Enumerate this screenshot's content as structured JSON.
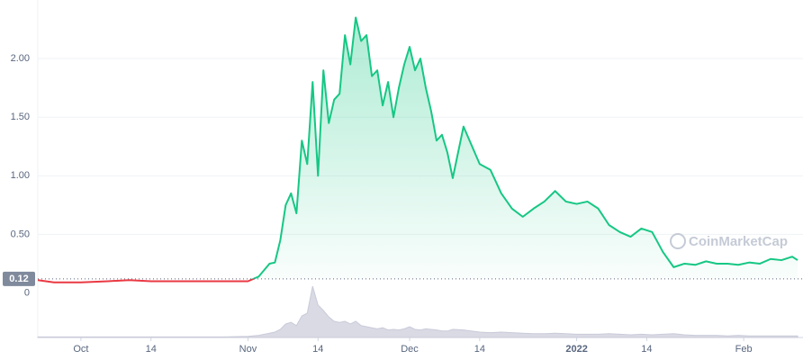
{
  "chart_data": {
    "type": "line",
    "watermark": "CoinMarketCap",
    "x": [
      "2021-09-23",
      "2021-09-26",
      "2021-10-01",
      "2021-10-06",
      "2021-10-10",
      "2021-10-14",
      "2021-10-20",
      "2021-10-27",
      "2021-11-01",
      "2021-11-03",
      "2021-11-05",
      "2021-11-06",
      "2021-11-07",
      "2021-11-08",
      "2021-11-09",
      "2021-11-10",
      "2021-11-11",
      "2021-11-12",
      "2021-11-13",
      "2021-11-14",
      "2021-11-15",
      "2021-11-16",
      "2021-11-17",
      "2021-11-18",
      "2021-11-19",
      "2021-11-20",
      "2021-11-21",
      "2021-11-22",
      "2021-11-23",
      "2021-11-24",
      "2021-11-25",
      "2021-11-26",
      "2021-11-27",
      "2021-11-28",
      "2021-11-29",
      "2021-11-30",
      "2021-12-01",
      "2021-12-02",
      "2021-12-03",
      "2021-12-04",
      "2021-12-05",
      "2021-12-06",
      "2021-12-07",
      "2021-12-08",
      "2021-12-09",
      "2021-12-11",
      "2021-12-14",
      "2021-12-16",
      "2021-12-18",
      "2021-12-20",
      "2021-12-22",
      "2021-12-24",
      "2021-12-26",
      "2021-12-28",
      "2021-12-30",
      "2022-01-01",
      "2022-01-03",
      "2022-01-05",
      "2022-01-07",
      "2022-01-09",
      "2022-01-11",
      "2022-01-13",
      "2022-01-15",
      "2022-01-17",
      "2022-01-19",
      "2022-01-21",
      "2022-01-23",
      "2022-01-25",
      "2022-01-27",
      "2022-01-29",
      "2022-01-31",
      "2022-02-02",
      "2022-02-04",
      "2022-02-06",
      "2022-02-08",
      "2022-02-10",
      "2022-02-11"
    ],
    "series": [
      {
        "name": "Price",
        "color": "#16c784",
        "color_below": "#ea3943",
        "values": [
          0.11,
          0.09,
          0.09,
          0.1,
          0.11,
          0.1,
          0.1,
          0.1,
          0.1,
          0.14,
          0.25,
          0.26,
          0.45,
          0.75,
          0.85,
          0.68,
          1.3,
          1.1,
          1.8,
          1.0,
          1.9,
          1.45,
          1.65,
          1.7,
          2.2,
          1.95,
          2.35,
          2.15,
          2.2,
          1.85,
          1.9,
          1.6,
          1.8,
          1.5,
          1.75,
          1.95,
          2.1,
          1.9,
          2.0,
          1.75,
          1.55,
          1.3,
          1.35,
          1.2,
          0.98,
          1.42,
          1.1,
          1.05,
          0.85,
          0.72,
          0.65,
          0.72,
          0.78,
          0.87,
          0.78,
          0.76,
          0.78,
          0.72,
          0.58,
          0.52,
          0.48,
          0.55,
          0.52,
          0.35,
          0.22,
          0.25,
          0.24,
          0.27,
          0.25,
          0.25,
          0.24,
          0.26,
          0.25,
          0.29,
          0.28,
          0.31,
          0.28
        ]
      },
      {
        "name": "Volume",
        "color": "#c9cbd9",
        "axis": "y2",
        "values": [
          1,
          1,
          1,
          1,
          1,
          1,
          1,
          1,
          2,
          4,
          8,
          10,
          15,
          25,
          28,
          22,
          40,
          45,
          95,
          60,
          50,
          38,
          30,
          28,
          30,
          25,
          30,
          22,
          20,
          18,
          16,
          18,
          14,
          15,
          14,
          16,
          20,
          15,
          14,
          16,
          15,
          14,
          12,
          12,
          15,
          14,
          10,
          9,
          10,
          9,
          8,
          7,
          7,
          8,
          7,
          6,
          6,
          6,
          7,
          6,
          5,
          6,
          5,
          6,
          7,
          5,
          4,
          4,
          4,
          3,
          4,
          3,
          3,
          3,
          3,
          3,
          3
        ]
      }
    ],
    "reference": {
      "value": 0.12,
      "label": "0.12"
    },
    "xlim": [
      "2021-09-23",
      "2022-02-12"
    ],
    "xticks": [
      {
        "value": "2021-10-01",
        "label": "Oct"
      },
      {
        "value": "2021-10-14",
        "label": "14"
      },
      {
        "value": "2021-11-01",
        "label": "Nov"
      },
      {
        "value": "2021-11-14",
        "label": "14"
      },
      {
        "value": "2021-12-01",
        "label": "Dec"
      },
      {
        "value": "2021-12-14",
        "label": "14"
      },
      {
        "value": "2022-01-01",
        "label": "2022"
      },
      {
        "value": "2022-01-14",
        "label": "14"
      },
      {
        "value": "2022-02-01",
        "label": "Feb"
      }
    ],
    "ylim": [
      -0.38,
      2.5
    ],
    "yticks": [
      0,
      {
        "value": 0.5,
        "label": "0.50"
      },
      {
        "value": 1,
        "label": "1.00"
      },
      {
        "value": 1.5,
        "label": "1.50"
      },
      {
        "value": 2,
        "label": "2.00"
      }
    ],
    "y2lim": [
      0,
      100
    ],
    "grid": true
  }
}
